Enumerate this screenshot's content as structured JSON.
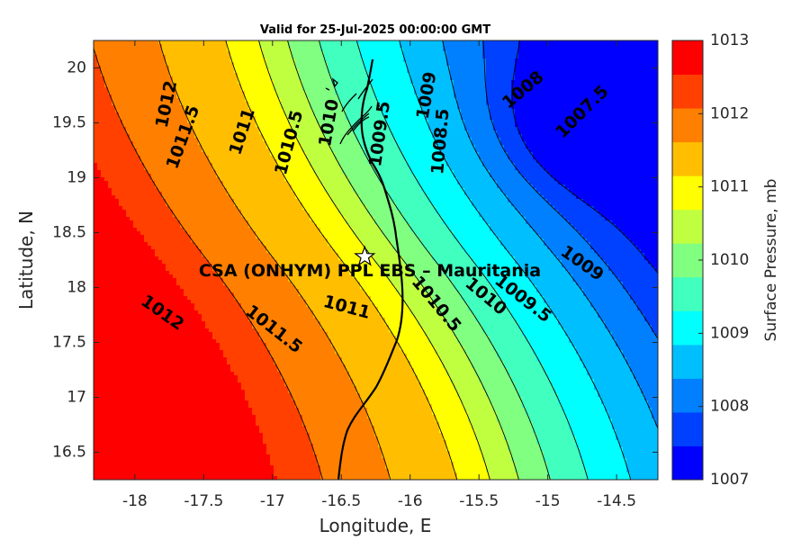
{
  "chart_data": {
    "type": "heatmap",
    "title": "Valid for 25-Jul-2025 00:00:00 GMT",
    "xlabel": "Longitude, E",
    "ylabel": "Latitude, N",
    "xlim": [
      -18.3,
      -14.2
    ],
    "ylim": [
      16.25,
      20.25
    ],
    "xticks": [
      -18,
      -17.5,
      -17,
      -16.5,
      -16,
      -15.5,
      -15,
      -14.5
    ],
    "yticks": [
      16.5,
      17,
      17.5,
      18,
      18.5,
      19,
      19.5,
      20
    ],
    "colorbar": {
      "label": "Surface Pressure, mb",
      "range": [
        1007,
        1013
      ],
      "step": 0.5,
      "ticks": [
        1007,
        1008,
        1009,
        1010,
        1011,
        1012,
        1013
      ],
      "colors": [
        "#0000ff",
        "#0040ff",
        "#0080ff",
        "#00bfff",
        "#00ffff",
        "#40ffbf",
        "#80ff80",
        "#bfff40",
        "#ffff00",
        "#ffbf00",
        "#ff8000",
        "#ff4000",
        "#ff0000"
      ]
    },
    "station": {
      "name": "CSA (ONHYM) PPL EBS  – Mauritania",
      "lon": -16.33,
      "lat": 18.28
    },
    "contour_labels": [
      {
        "text": "1012",
        "lon": -17.77,
        "lat": 19.67,
        "rot": -78
      },
      {
        "text": "1011.5",
        "lon": -17.65,
        "lat": 19.37,
        "rot": -70
      },
      {
        "text": "1011",
        "lon": -17.22,
        "lat": 19.42,
        "rot": -72
      },
      {
        "text": "1010.5",
        "lon": -16.88,
        "lat": 19.32,
        "rot": -75
      },
      {
        "text": "1010",
        "lon": -16.59,
        "lat": 19.5,
        "rot": -80
      },
      {
        "text": "1009.5",
        "lon": -16.22,
        "lat": 19.4,
        "rot": -82
      },
      {
        "text": "1009",
        "lon": -15.88,
        "lat": 19.75,
        "rot": -80
      },
      {
        "text": "1008.5",
        "lon": -15.78,
        "lat": 19.33,
        "rot": -85
      },
      {
        "text": "1008",
        "lon": -15.18,
        "lat": 19.8,
        "rot": -40
      },
      {
        "text": "1007.5",
        "lon": -14.75,
        "lat": 19.6,
        "rot": -45
      },
      {
        "text": "1012",
        "lon": -17.8,
        "lat": 17.77,
        "rot": 35
      },
      {
        "text": "1011.5",
        "lon": -16.99,
        "lat": 17.62,
        "rot": 38
      },
      {
        "text": "1011",
        "lon": -16.46,
        "lat": 17.82,
        "rot": 15
      },
      {
        "text": "1010.5",
        "lon": -15.81,
        "lat": 17.85,
        "rot": 50
      },
      {
        "text": "1010",
        "lon": -15.45,
        "lat": 17.92,
        "rot": 40
      },
      {
        "text": "1009.5",
        "lon": -15.18,
        "lat": 17.9,
        "rot": 38
      },
      {
        "text": "1009",
        "lon": -14.75,
        "lat": 18.22,
        "rot": 35
      }
    ]
  }
}
